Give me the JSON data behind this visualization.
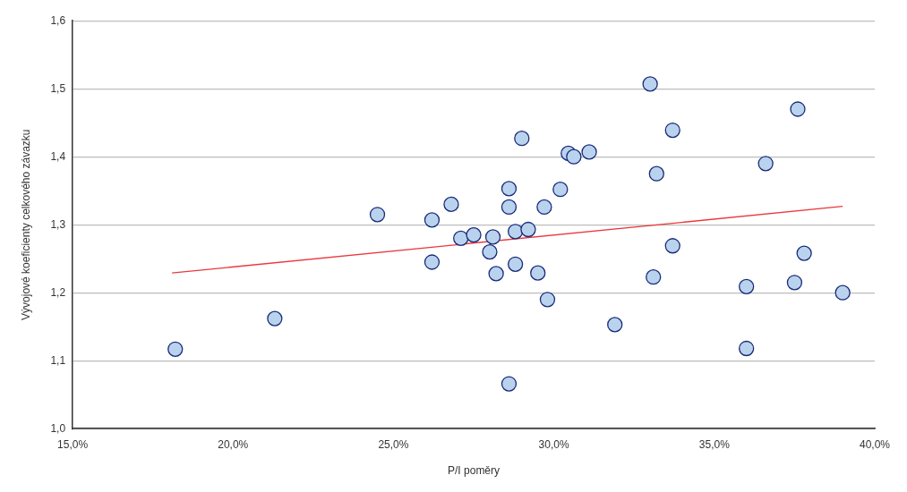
{
  "chart_data": {
    "type": "scatter",
    "xlabel": "P/I poměry",
    "ylabel": "Vývojové koeficienty celkového závazku",
    "xlim": [
      15,
      40
    ],
    "xticks": [
      {
        "value": 15,
        "label": "15,0%"
      },
      {
        "value": 20,
        "label": "20,0%"
      },
      {
        "value": 25,
        "label": "25,0%"
      },
      {
        "value": 30,
        "label": "30,0%"
      },
      {
        "value": 35,
        "label": "35,0%"
      },
      {
        "value": 40,
        "label": "40,0%"
      }
    ],
    "ylim": [
      1.0,
      1.6
    ],
    "yticks": [
      {
        "value": 1.0,
        "label": "1,0"
      },
      {
        "value": 1.1,
        "label": "1,1"
      },
      {
        "value": 1.2,
        "label": "1,2"
      },
      {
        "value": 1.3,
        "label": "1,3"
      },
      {
        "value": 1.4,
        "label": "1,4"
      },
      {
        "value": 1.5,
        "label": "1,5"
      },
      {
        "value": 1.6,
        "label": "1,6"
      }
    ],
    "grid": "y",
    "legend": false,
    "marker": "circle",
    "series": [
      {
        "type": "scatter",
        "color": "#b9d3ee",
        "x": [
          18.2,
          21.3,
          24.5,
          26.2,
          26.2,
          26.8,
          27.1,
          27.5,
          28.1,
          28.0,
          28.2,
          28.6,
          28.6,
          28.8,
          28.8,
          29.2,
          29.0,
          28.6,
          29.5,
          29.7,
          29.8,
          30.2,
          30.45,
          30.62,
          31.1,
          31.9,
          33.0,
          33.1,
          33.2,
          33.7,
          33.7,
          36.0,
          36.0,
          36.6,
          37.6,
          37.5,
          37.8,
          39.0
        ],
        "values": [
          1.117,
          1.162,
          1.315,
          1.307,
          1.245,
          1.33,
          1.28,
          1.285,
          1.282,
          1.26,
          1.228,
          1.353,
          1.326,
          1.29,
          1.242,
          1.293,
          1.427,
          1.066,
          1.229,
          1.326,
          1.19,
          1.352,
          1.405,
          1.4,
          1.407,
          1.153,
          1.507,
          1.223,
          1.375,
          1.439,
          1.269,
          1.209,
          1.118,
          1.39,
          1.47,
          1.215,
          1.258,
          1.2
        ]
      },
      {
        "type": "line",
        "color": "#e8383d",
        "x": [
          18.1,
          39.0
        ],
        "values": [
          1.229,
          1.327
        ],
        "marker": "none",
        "line_style": "solid"
      }
    ]
  }
}
